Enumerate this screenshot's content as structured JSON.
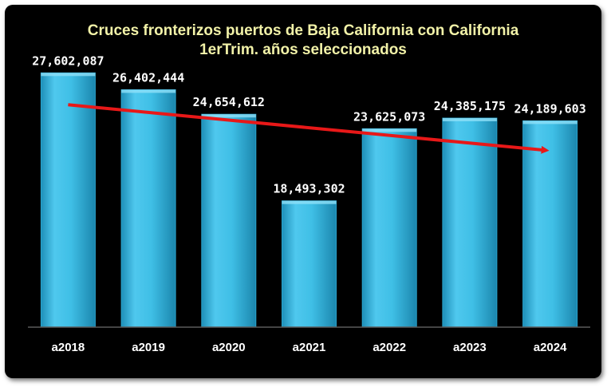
{
  "chart_data": {
    "type": "bar",
    "title": "Cruces fronterizos puertos de Baja California con California",
    "subtitle": "1erTrim.  años seleccionados",
    "categories": [
      "a2018",
      "a2019",
      "a2020",
      "a2021",
      "a2022",
      "a2023",
      "a2024"
    ],
    "values": [
      27602087,
      26402444,
      24654612,
      18493302,
      23625073,
      24385175,
      24189603
    ],
    "value_labels": [
      "27,602,087",
      "26,402,444",
      "24,654,612",
      "18,493,302",
      "23,625,073",
      "24,385,175",
      "24,189,603"
    ],
    "ylim": [
      9500000,
      28700000
    ],
    "grid": false,
    "legend": "none",
    "trendline": {
      "from": "a2018",
      "to": "a2024",
      "direction": "down"
    },
    "colors": {
      "background": "#000000",
      "bar": "#3fbfe6",
      "trendline": "#e81818",
      "title": "#f2f2a8",
      "labels": "#ffffff"
    }
  }
}
